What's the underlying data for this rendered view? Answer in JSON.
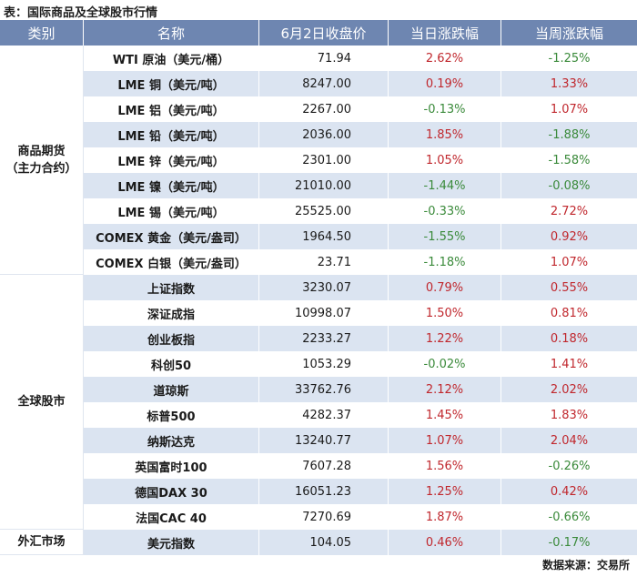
{
  "caption": "表：国际商品及全球股市行情",
  "headers": [
    "类别",
    "名称",
    "6月2日收盘价",
    "当日涨跌幅",
    "当周涨跌幅"
  ],
  "colors": {
    "header_bg": "#6e86b1",
    "row_alt": "#dbe4f1",
    "up": "#c0272d",
    "down": "#3a8a3a"
  },
  "groups": [
    {
      "category": "商品期货\n（主力合约）",
      "rows": [
        {
          "name": "WTI 原油（美元/桶）",
          "close": "71.94",
          "day": "2.62%",
          "week": "-1.25%"
        },
        {
          "name": "LME 铜（美元/吨）",
          "close": "8247.00",
          "day": "0.19%",
          "week": "1.33%"
        },
        {
          "name": "LME 铝（美元/吨）",
          "close": "2267.00",
          "day": "-0.13%",
          "week": "1.07%"
        },
        {
          "name": "LME 铅（美元/吨）",
          "close": "2036.00",
          "day": "1.85%",
          "week": "-1.88%"
        },
        {
          "name": "LME 锌（美元/吨）",
          "close": "2301.00",
          "day": "1.05%",
          "week": "-1.58%"
        },
        {
          "name": "LME 镍（美元/吨）",
          "close": "21010.00",
          "day": "-1.44%",
          "week": "-0.08%"
        },
        {
          "name": "LME 锡（美元/吨）",
          "close": "25525.00",
          "day": "-0.33%",
          "week": "2.72%"
        },
        {
          "name": "COMEX 黄金（美元/盎司）",
          "close": "1964.50",
          "day": "-1.55%",
          "week": "0.92%"
        },
        {
          "name": "COMEX 白银（美元/盎司）",
          "close": "23.71",
          "day": "-1.18%",
          "week": "1.07%"
        }
      ]
    },
    {
      "category": "全球股市",
      "rows": [
        {
          "name": "上证指数",
          "close": "3230.07",
          "day": "0.79%",
          "week": "0.55%"
        },
        {
          "name": "深证成指",
          "close": "10998.07",
          "day": "1.50%",
          "week": "0.81%"
        },
        {
          "name": "创业板指",
          "close": "2233.27",
          "day": "1.22%",
          "week": "0.18%"
        },
        {
          "name": "科创50",
          "close": "1053.29",
          "day": "-0.02%",
          "week": "1.41%"
        },
        {
          "name": "道琼斯",
          "close": "33762.76",
          "day": "2.12%",
          "week": "2.02%"
        },
        {
          "name": "标普500",
          "close": "4282.37",
          "day": "1.45%",
          "week": "1.83%"
        },
        {
          "name": "纳斯达克",
          "close": "13240.77",
          "day": "1.07%",
          "week": "2.04%"
        },
        {
          "name": "英国富时100",
          "close": "7607.28",
          "day": "1.56%",
          "week": "-0.26%"
        },
        {
          "name": "德国DAX 30",
          "close": "16051.23",
          "day": "1.25%",
          "week": "0.42%"
        },
        {
          "name": "法国CAC 40",
          "close": "7270.69",
          "day": "1.87%",
          "week": "-0.66%"
        }
      ]
    },
    {
      "category": "外汇市场",
      "rows": [
        {
          "name": "美元指数",
          "close": "104.05",
          "day": "0.46%",
          "week": "-0.17%"
        }
      ]
    }
  ],
  "source": "数据来源：交易所"
}
